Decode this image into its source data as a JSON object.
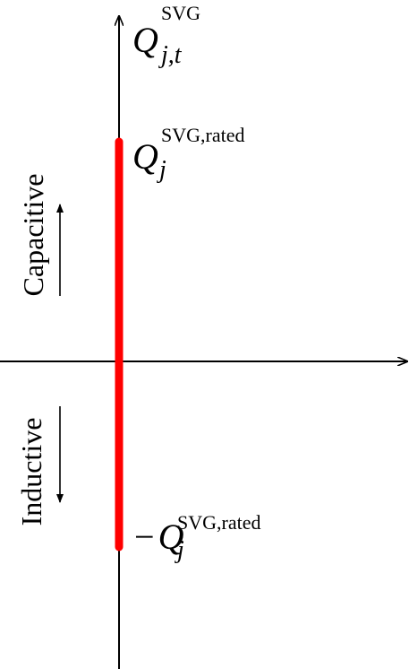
{
  "axis_label": {
    "main": "Q",
    "sub": "j,t",
    "sup": "SVG"
  },
  "upper_limit": {
    "main": "Q",
    "sub": "j",
    "sup": "SVG,rated"
  },
  "lower_limit": {
    "prefix": "−",
    "main": "Q",
    "sub": "j",
    "sup": "SVG,rated"
  },
  "regions": {
    "upper": "Capacitive",
    "lower": "Inductive"
  }
}
